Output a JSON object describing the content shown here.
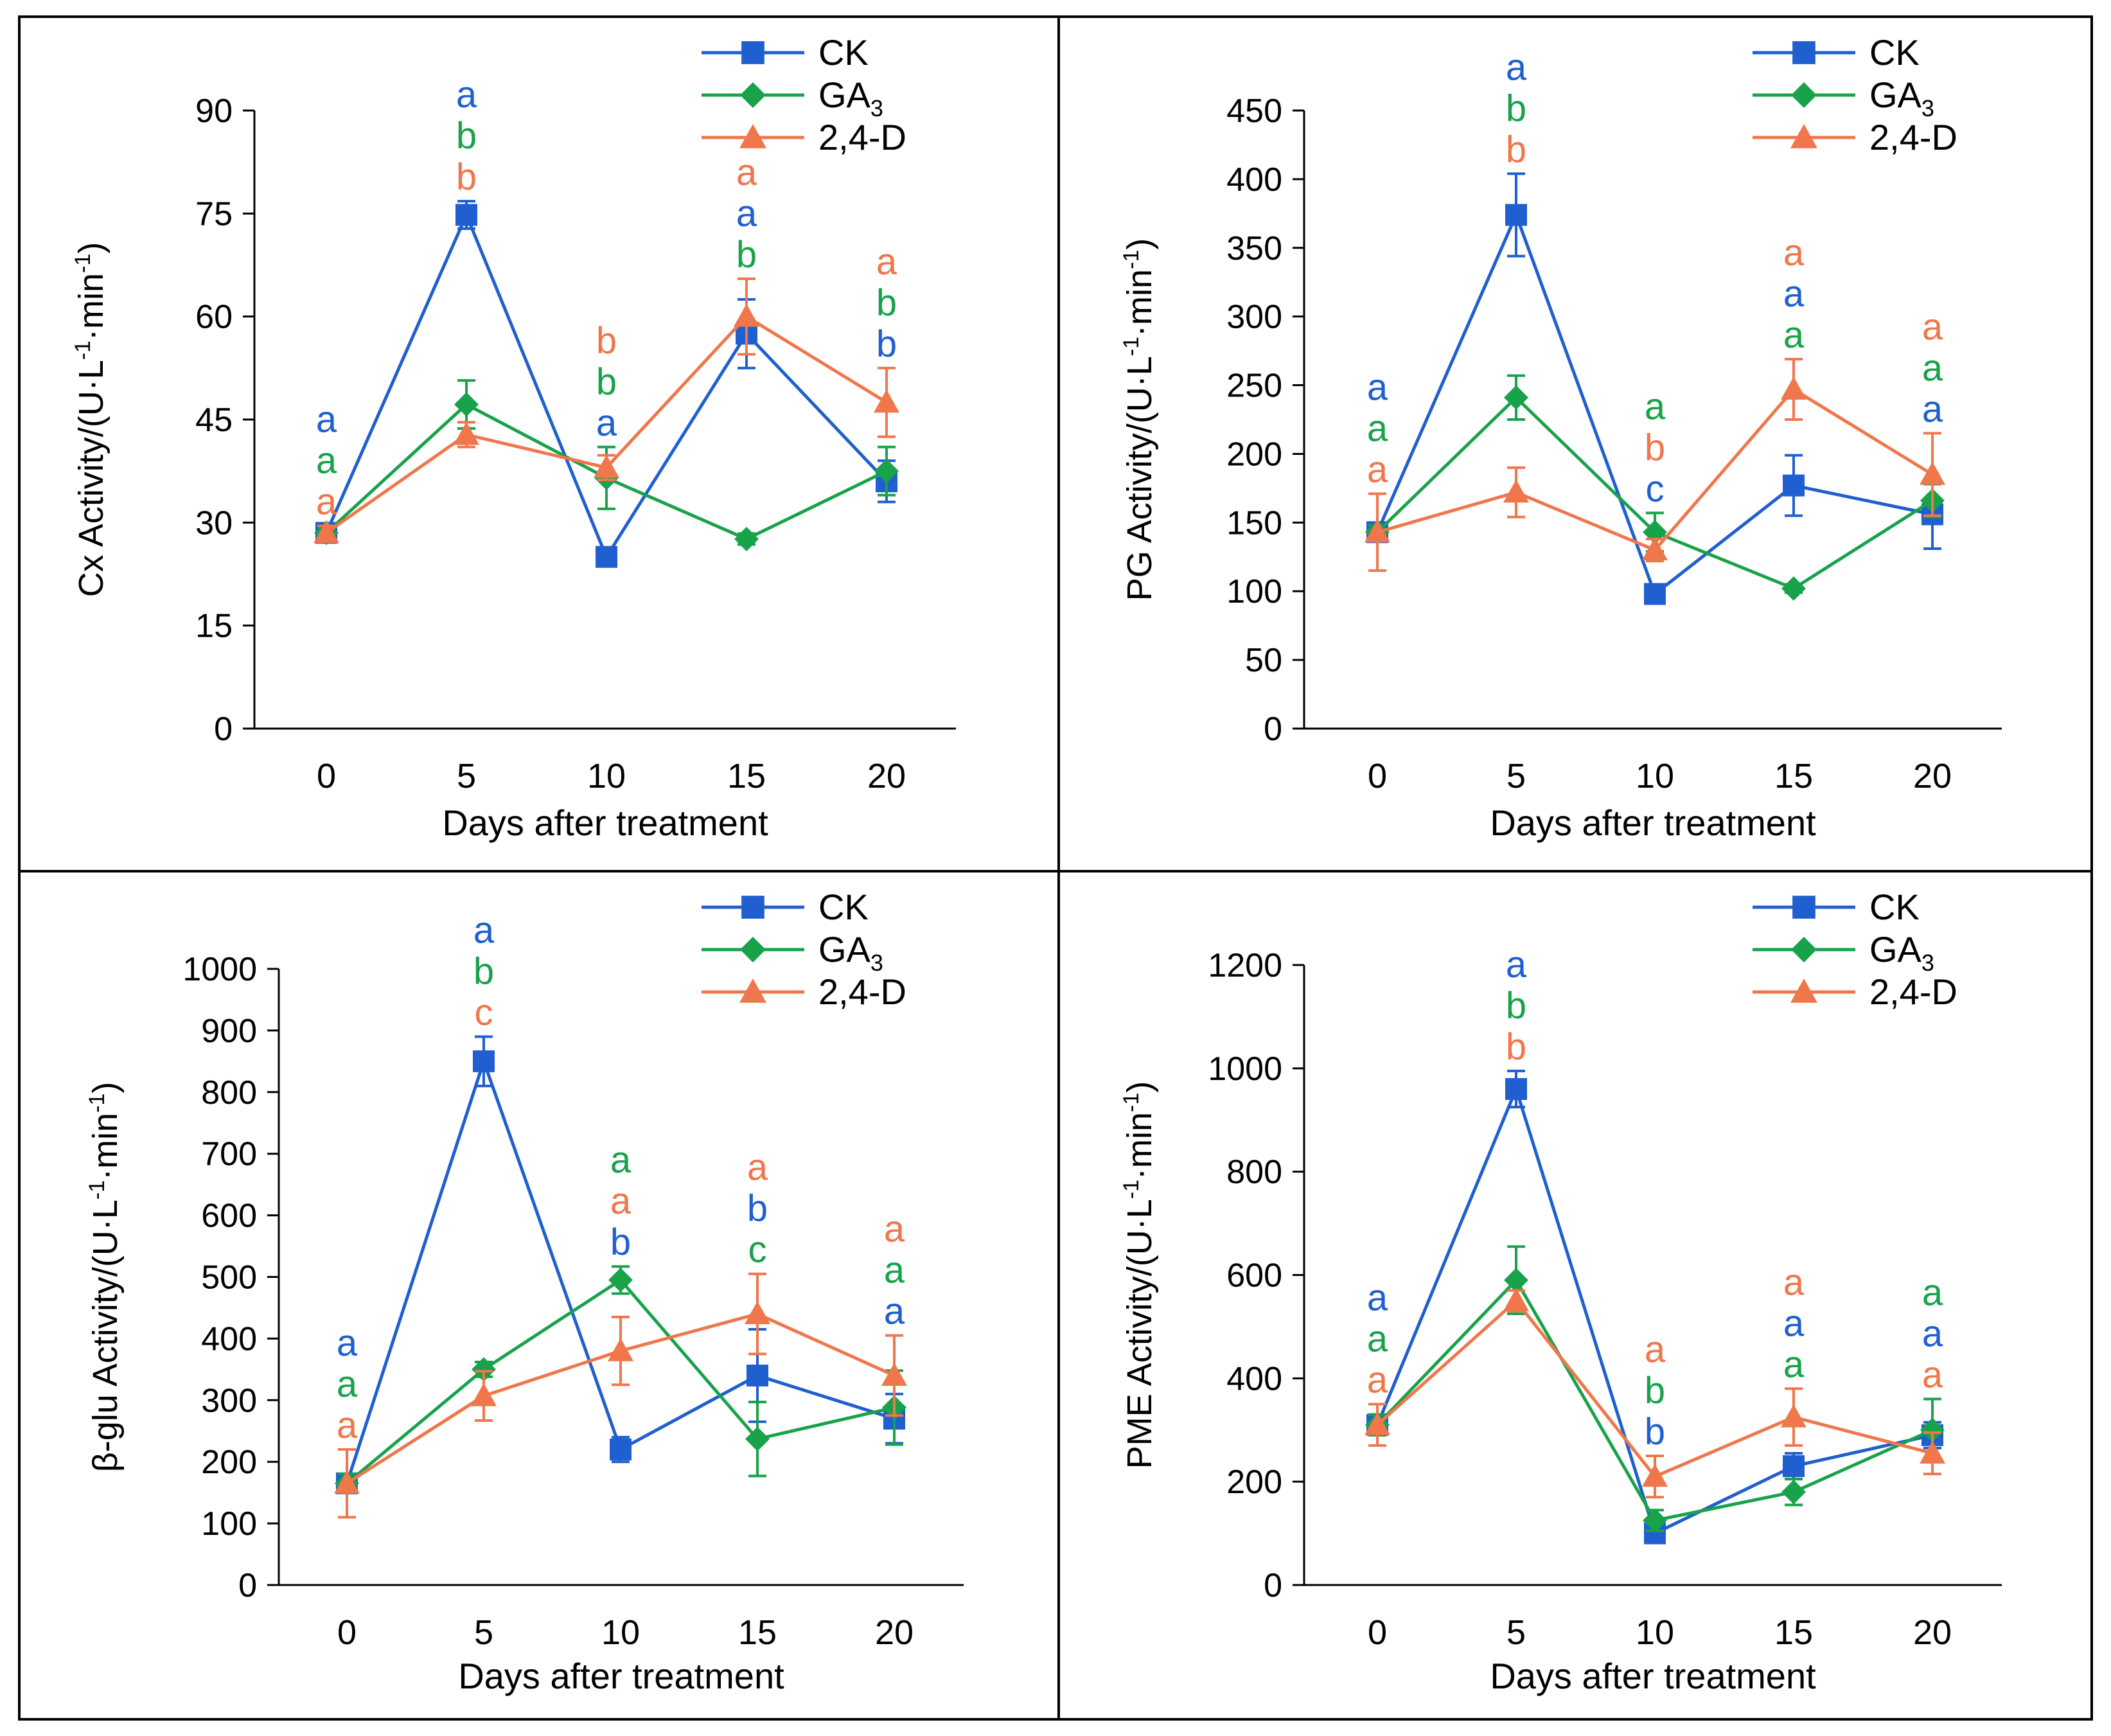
{
  "figure": {
    "frame_color": "#000000"
  },
  "colors": {
    "CK": "#1F5FCF",
    "GA3": "#18A24A",
    "D24": "#F0764B"
  },
  "chart_data": [
    {
      "type": "line",
      "panel": "top-left",
      "xlabel": "Days after treatment",
      "ylabel_main": "Cx Activity/(U·L",
      "ylabel_sup1": "-1",
      "ylabel_mid": "·min",
      "ylabel_sup2": "-1",
      "ylabel_close": ")",
      "x": [
        0,
        5,
        10,
        15,
        20
      ],
      "xticks": [
        "0",
        "5",
        "10",
        "15",
        "20"
      ],
      "ylim": [
        0,
        90
      ],
      "yticks": [
        0,
        15,
        30,
        45,
        60,
        75,
        90
      ],
      "legend_placement": "top-right",
      "series": [
        {
          "key": "CK",
          "label": "CK",
          "marker": "square",
          "values": [
            28.5,
            74.8,
            25,
            57.5,
            36
          ],
          "errors": [
            1,
            2,
            1,
            5,
            3
          ]
        },
        {
          "key": "GA3",
          "label": "GA",
          "label_sub": "3",
          "marker": "diamond",
          "values": [
            28.5,
            47.2,
            36.5,
            27.6,
            37.5
          ],
          "errors": [
            1,
            3.5,
            4.5,
            0.8,
            3.5
          ]
        },
        {
          "key": "D24",
          "label": "2,4-D",
          "marker": "triangle",
          "values": [
            28.5,
            42.8,
            38,
            60,
            47.5
          ],
          "errors": [
            1,
            1.8,
            1.8,
            5.5,
            5
          ]
        }
      ],
      "letters": [
        {
          "x": 0,
          "items": [
            {
              "t": "a",
              "c": "CK"
            },
            {
              "t": "a",
              "c": "GA3"
            },
            {
              "t": "a",
              "c": "D24"
            }
          ]
        },
        {
          "x": 5,
          "items": [
            {
              "t": "a",
              "c": "CK"
            },
            {
              "t": "b",
              "c": "GA3"
            },
            {
              "t": "b",
              "c": "D24"
            }
          ]
        },
        {
          "x": 10,
          "items": [
            {
              "t": "b",
              "c": "D24"
            },
            {
              "t": "b",
              "c": "GA3"
            },
            {
              "t": "a",
              "c": "CK"
            }
          ]
        },
        {
          "x": 15,
          "items": [
            {
              "t": "a",
              "c": "D24"
            },
            {
              "t": "a",
              "c": "CK"
            },
            {
              "t": "b",
              "c": "GA3"
            }
          ]
        },
        {
          "x": 20,
          "items": [
            {
              "t": "a",
              "c": "D24"
            },
            {
              "t": "b",
              "c": "GA3"
            },
            {
              "t": "b",
              "c": "CK"
            }
          ]
        }
      ]
    },
    {
      "type": "line",
      "panel": "top-right",
      "xlabel": "Days after treatment",
      "ylabel_main": "PG Activity/(U·L",
      "ylabel_sup1": "-1",
      "ylabel_mid": "·min",
      "ylabel_sup2": "-1",
      "ylabel_close": ")",
      "x": [
        0,
        5,
        10,
        15,
        20
      ],
      "xticks": [
        "0",
        "5",
        "10",
        "15",
        "20"
      ],
      "ylim": [
        0,
        450
      ],
      "yticks": [
        0,
        50,
        100,
        150,
        200,
        250,
        300,
        350,
        400,
        450
      ],
      "legend_placement": "top-right",
      "series": [
        {
          "key": "CK",
          "label": "CK",
          "marker": "square",
          "values": [
            143,
            374,
            98,
            177,
            156
          ],
          "errors": [
            5,
            30,
            5,
            22,
            25
          ]
        },
        {
          "key": "GA3",
          "label": "GA",
          "label_sub": "3",
          "marker": "diamond",
          "values": [
            143,
            241,
            143,
            102,
            166
          ],
          "errors": [
            5,
            16,
            14,
            3,
            12
          ]
        },
        {
          "key": "D24",
          "label": "2,4-D",
          "marker": "triangle",
          "values": [
            143,
            172,
            130,
            247,
            185
          ],
          "errors": [
            28,
            18,
            8,
            22,
            30
          ]
        }
      ],
      "letters": [
        {
          "x": 0,
          "items": [
            {
              "t": "a",
              "c": "CK"
            },
            {
              "t": "a",
              "c": "GA3"
            },
            {
              "t": "a",
              "c": "D24"
            }
          ]
        },
        {
          "x": 5,
          "items": [
            {
              "t": "a",
              "c": "CK"
            },
            {
              "t": "b",
              "c": "GA3"
            },
            {
              "t": "b",
              "c": "D24"
            }
          ]
        },
        {
          "x": 10,
          "items": [
            {
              "t": "a",
              "c": "GA3"
            },
            {
              "t": "b",
              "c": "D24"
            },
            {
              "t": "c",
              "c": "CK"
            }
          ]
        },
        {
          "x": 15,
          "items": [
            {
              "t": "a",
              "c": "D24"
            },
            {
              "t": "a",
              "c": "CK"
            },
            {
              "t": "a",
              "c": "GA3"
            }
          ]
        },
        {
          "x": 20,
          "items": [
            {
              "t": "a",
              "c": "D24"
            },
            {
              "t": "a",
              "c": "GA3"
            },
            {
              "t": "a",
              "c": "CK"
            }
          ]
        }
      ]
    },
    {
      "type": "line",
      "panel": "bottom-left",
      "xlabel": "Days after treatment",
      "ylabel_main": "β-glu Activity/(U·L",
      "ylabel_sup1": "-1",
      "ylabel_mid": "·min",
      "ylabel_sup2": "-1",
      "ylabel_close": ")",
      "x": [
        0,
        5,
        10,
        15,
        20
      ],
      "xticks": [
        "0",
        "5",
        "10",
        "15",
        "20"
      ],
      "ylim": [
        0,
        1000
      ],
      "yticks": [
        0,
        100,
        200,
        300,
        400,
        500,
        600,
        700,
        800,
        900,
        1000
      ],
      "legend_placement": "top-right",
      "series": [
        {
          "key": "CK",
          "label": "CK",
          "marker": "square",
          "values": [
            165,
            850,
            220,
            340,
            270
          ],
          "errors": [
            15,
            40,
            20,
            75,
            40
          ]
        },
        {
          "key": "GA3",
          "label": "GA",
          "label_sub": "3",
          "marker": "diamond",
          "values": [
            165,
            350,
            495,
            237,
            288
          ],
          "errors": [
            15,
            12,
            22,
            60,
            60
          ]
        },
        {
          "key": "D24",
          "label": "2,4-D",
          "marker": "triangle",
          "values": [
            165,
            307,
            380,
            440,
            340
          ],
          "errors": [
            55,
            40,
            55,
            65,
            65
          ]
        }
      ],
      "letters": [
        {
          "x": 0,
          "items": [
            {
              "t": "a",
              "c": "CK"
            },
            {
              "t": "a",
              "c": "GA3"
            },
            {
              "t": "a",
              "c": "D24"
            }
          ]
        },
        {
          "x": 5,
          "items": [
            {
              "t": "a",
              "c": "CK"
            },
            {
              "t": "b",
              "c": "GA3"
            },
            {
              "t": "c",
              "c": "D24"
            }
          ]
        },
        {
          "x": 10,
          "items": [
            {
              "t": "a",
              "c": "GA3"
            },
            {
              "t": "a",
              "c": "D24"
            },
            {
              "t": "b",
              "c": "CK"
            }
          ]
        },
        {
          "x": 15,
          "items": [
            {
              "t": "a",
              "c": "D24"
            },
            {
              "t": "b",
              "c": "CK"
            },
            {
              "t": "c",
              "c": "GA3"
            }
          ]
        },
        {
          "x": 20,
          "items": [
            {
              "t": "a",
              "c": "D24"
            },
            {
              "t": "a",
              "c": "GA3"
            },
            {
              "t": "a",
              "c": "CK"
            }
          ]
        }
      ]
    },
    {
      "type": "line",
      "panel": "bottom-right",
      "xlabel": "Days after treatment",
      "ylabel_main": "PME Activity/(U·L",
      "ylabel_sup1": "-1",
      "ylabel_mid": "·min",
      "ylabel_sup2": "-1",
      "ylabel_close": ")",
      "x": [
        0,
        5,
        10,
        15,
        20
      ],
      "xticks": [
        "0",
        "5",
        "10",
        "15",
        "20"
      ],
      "ylim": [
        0,
        1200
      ],
      "yticks": [
        0,
        200,
        400,
        600,
        800,
        1000,
        1200
      ],
      "legend_placement": "top-right",
      "series": [
        {
          "key": "CK",
          "label": "CK",
          "marker": "square",
          "values": [
            310,
            960,
            100,
            230,
            290
          ],
          "errors": [
            20,
            35,
            10,
            25,
            25
          ]
        },
        {
          "key": "GA3",
          "label": "GA",
          "label_sub": "3",
          "marker": "diamond",
          "values": [
            310,
            590,
            125,
            180,
            300
          ],
          "errors": [
            20,
            65,
            20,
            25,
            60
          ]
        },
        {
          "key": "D24",
          "label": "2,4-D",
          "marker": "triangle",
          "values": [
            310,
            550,
            210,
            325,
            255
          ],
          "errors": [
            40,
            20,
            40,
            55,
            40
          ]
        }
      ],
      "letters": [
        {
          "x": 0,
          "items": [
            {
              "t": "a",
              "c": "CK"
            },
            {
              "t": "a",
              "c": "GA3"
            },
            {
              "t": "a",
              "c": "D24"
            }
          ]
        },
        {
          "x": 5,
          "items": [
            {
              "t": "a",
              "c": "CK"
            },
            {
              "t": "b",
              "c": "GA3"
            },
            {
              "t": "b",
              "c": "D24"
            }
          ]
        },
        {
          "x": 10,
          "items": [
            {
              "t": "a",
              "c": "D24"
            },
            {
              "t": "b",
              "c": "GA3"
            },
            {
              "t": "b",
              "c": "CK"
            }
          ]
        },
        {
          "x": 15,
          "items": [
            {
              "t": "a",
              "c": "D24"
            },
            {
              "t": "a",
              "c": "CK"
            },
            {
              "t": "a",
              "c": "GA3"
            }
          ]
        },
        {
          "x": 20,
          "items": [
            {
              "t": "a",
              "c": "GA3"
            },
            {
              "t": "a",
              "c": "CK"
            },
            {
              "t": "a",
              "c": "D24"
            }
          ]
        }
      ]
    }
  ]
}
